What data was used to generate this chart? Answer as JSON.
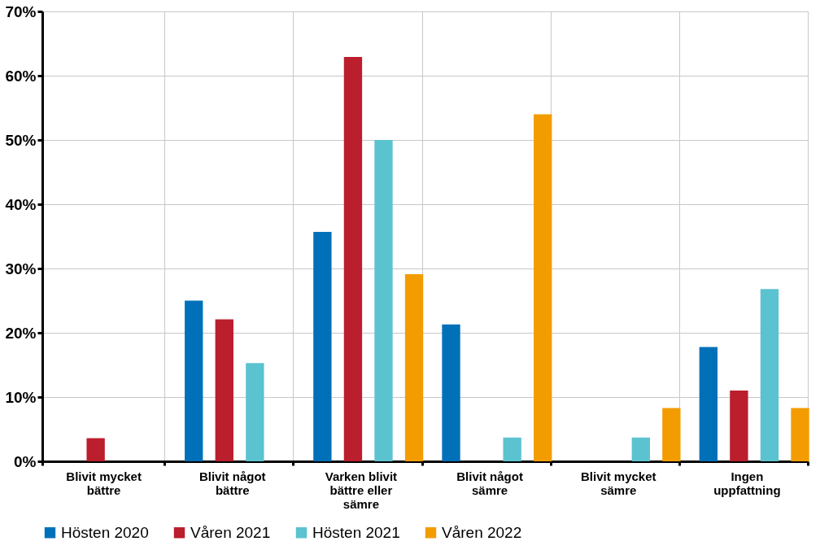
{
  "chart_data": {
    "type": "bar",
    "categories": [
      "Blivit mycket bättre",
      "Blivit något bättre",
      "Varken blivit bättre eller sämre",
      "Blivit något sämre",
      "Blivit mycket sämre",
      "Ingen uppfattning"
    ],
    "series": [
      {
        "name": "Hösten 2020",
        "color": "#0070b8",
        "values": [
          0,
          25,
          35.7,
          21.3,
          0,
          17.8
        ]
      },
      {
        "name": "Våren 2021",
        "color": "#bb1e2d",
        "values": [
          3.6,
          22.1,
          62.9,
          0,
          0,
          11.0
        ]
      },
      {
        "name": "Hösten 2021",
        "color": "#5bc2d0",
        "values": [
          0,
          15.3,
          50,
          3.7,
          3.7,
          26.8
        ]
      },
      {
        "name": "Våren 2022",
        "color": "#f39c00",
        "values": [
          0,
          0,
          29.1,
          54.0,
          8.3,
          8.3
        ]
      }
    ],
    "ylim": [
      0,
      70
    ],
    "yticks": [
      {
        "value": 0,
        "label": "0%"
      },
      {
        "value": 10,
        "label": "10%"
      },
      {
        "value": 20,
        "label": "20%"
      },
      {
        "value": 30,
        "label": "30%"
      },
      {
        "value": 40,
        "label": "40%"
      },
      {
        "value": 50,
        "label": "50%"
      },
      {
        "value": 60,
        "label": "60%"
      },
      {
        "value": 70,
        "label": "70%"
      }
    ],
    "grid": true,
    "legend": "bottom"
  }
}
